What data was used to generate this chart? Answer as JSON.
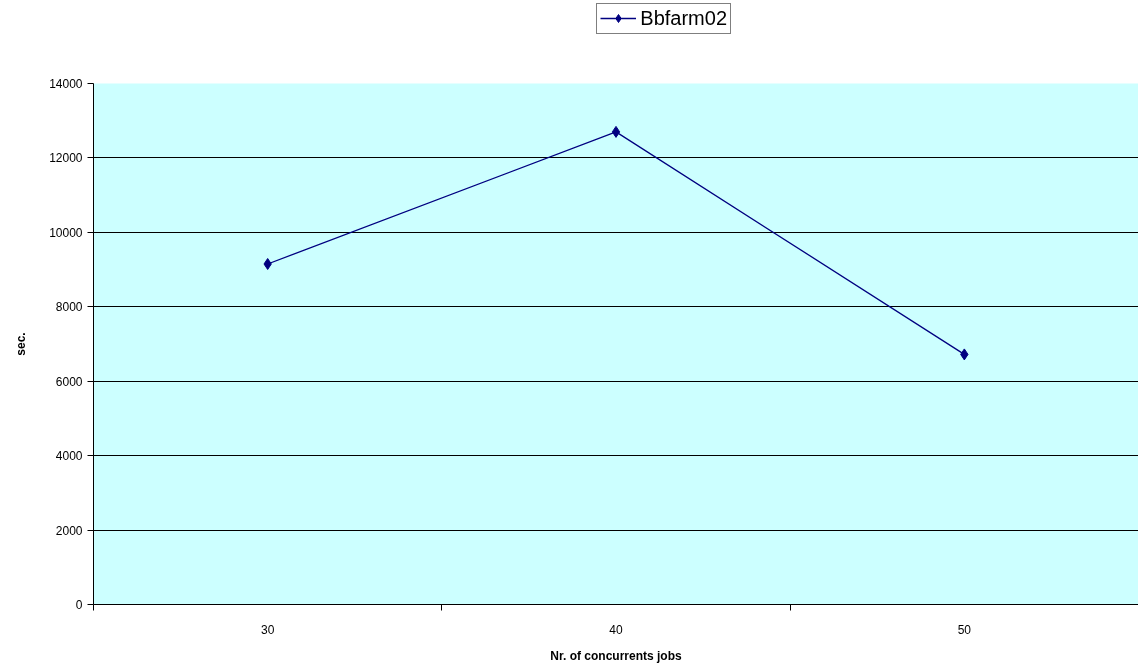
{
  "chart_data": {
    "type": "line",
    "xlabel": "Nr. of concurrents jobs",
    "ylabel": "sec.",
    "categories": [
      "30",
      "40",
      "50"
    ],
    "series": [
      {
        "name": "Bbfarm02",
        "color": "#000080",
        "values": [
          9150,
          12700,
          6720
        ]
      }
    ],
    "ylim": [
      0,
      14000
    ],
    "yticks": [
      0,
      2000,
      4000,
      6000,
      8000,
      10000,
      12000,
      14000
    ],
    "grid": "y",
    "legend": "top",
    "marker": "diamond",
    "line_style": "solid"
  }
}
